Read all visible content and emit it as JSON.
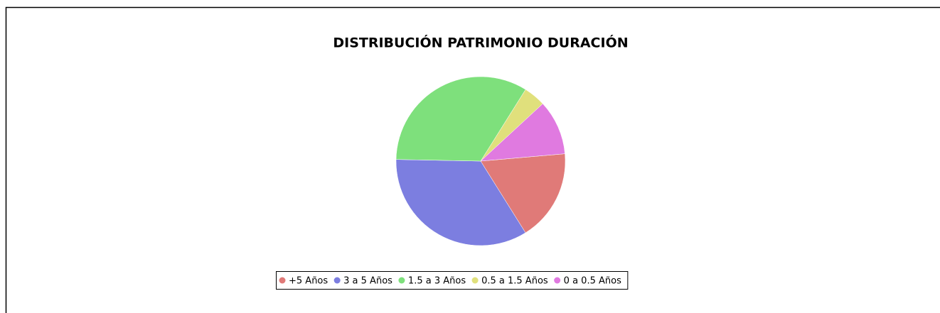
{
  "chart_data": {
    "type": "pie",
    "title": "DISTRIBUCIÓN PATRIMONIO DURACIÓN",
    "categories": [
      "+5 Años",
      "3 a 5 Años",
      "1.5 a 3 Años",
      "0.5 a 1.5 Años",
      "0 a 0.5 Años"
    ],
    "values": [
      17.5,
      34.2,
      33.6,
      4.2,
      10.5
    ],
    "colors": [
      "#e07a78",
      "#7c7ee0",
      "#7ee07c",
      "#e0e07c",
      "#e07ae0"
    ],
    "legend": "bottom"
  }
}
